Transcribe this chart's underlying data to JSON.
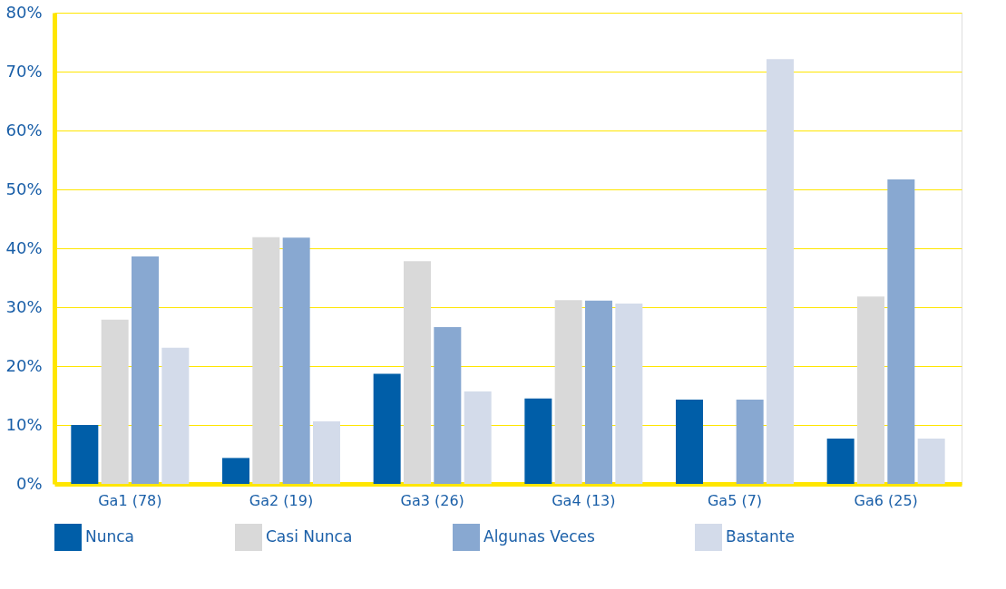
{
  "chart_data": {
    "type": "bar",
    "categories": [
      "Ga1 (78)",
      "Ga2 (19)",
      "Ga3 (26)",
      "Ga4 (13)",
      "Ga5 (7)",
      "Ga6 (25)"
    ],
    "series": [
      {
        "name": "Nunca",
        "color": "#005ea8",
        "values": [
          10,
          4.4,
          18.7,
          14.5,
          14.3,
          7.7
        ]
      },
      {
        "name": "Casi Nunca",
        "color": "#d9d9d9",
        "values": [
          27.9,
          41.9,
          37.8,
          31.2,
          0,
          31.8
        ]
      },
      {
        "name": "Algunas Veces",
        "color": "#88a8d1",
        "values": [
          38.6,
          41.8,
          26.6,
          31.1,
          14.3,
          51.7
        ]
      },
      {
        "name": "Bastante",
        "color": "#d3dbea",
        "values": [
          23.1,
          10.6,
          15.7,
          30.6,
          72.1,
          7.7
        ]
      }
    ],
    "ylim": [
      0,
      80
    ],
    "yticks": [
      {
        "value": 0,
        "label": "0%"
      },
      {
        "value": 10,
        "label": "10%"
      },
      {
        "value": 20,
        "label": "20%"
      },
      {
        "value": 30,
        "label": "30%"
      },
      {
        "value": 40,
        "label": "40%"
      },
      {
        "value": 50,
        "label": "50%"
      },
      {
        "value": 60,
        "label": "60%"
      },
      {
        "value": 70,
        "label": "70%"
      },
      {
        "value": 80,
        "label": "80%"
      }
    ],
    "grid": "y",
    "legend": "bottom"
  }
}
